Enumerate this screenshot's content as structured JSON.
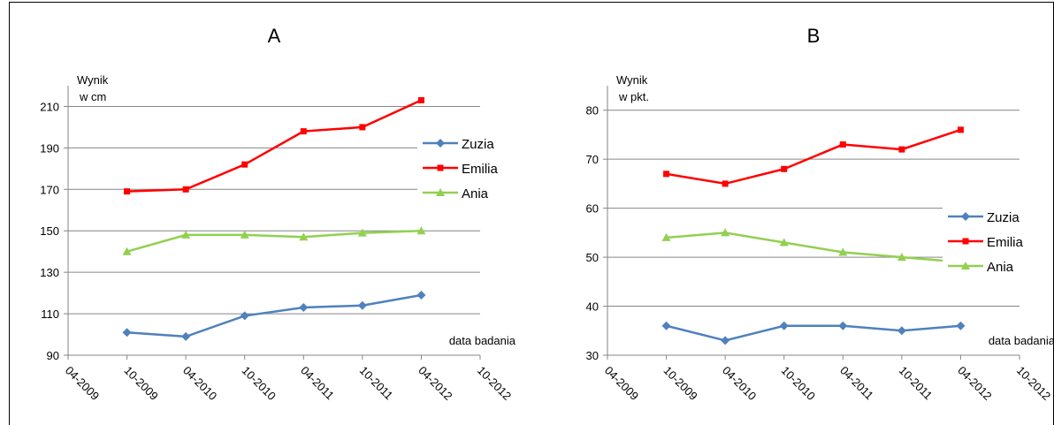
{
  "chart_data": [
    {
      "type": "line",
      "title": "A",
      "ylabel": [
        "Wynik",
        "w cm"
      ],
      "xlabel": "data badania",
      "categories": [
        "04-2009",
        "10-2009",
        "04-2010",
        "10-2010",
        "04-2011",
        "10-2011",
        "04-2012",
        "10-2012"
      ],
      "series": [
        {
          "name": "Zuzia",
          "color": "#4f81bd",
          "marker": "diamond",
          "values": [
            null,
            101,
            99,
            109,
            113,
            114,
            119,
            null
          ]
        },
        {
          "name": "Emilia",
          "color": "#ff0000",
          "marker": "square",
          "values": [
            null,
            169,
            170,
            182,
            198,
            200,
            213,
            null
          ]
        },
        {
          "name": "Ania",
          "color": "#92d050",
          "marker": "triangle",
          "values": [
            null,
            140,
            148,
            148,
            147,
            149,
            150,
            null
          ]
        }
      ],
      "ylim": [
        90,
        220
      ],
      "yticks": [
        90,
        110,
        130,
        150,
        170,
        190,
        210
      ],
      "grid": true,
      "legend": "right"
    },
    {
      "type": "line",
      "title": "B",
      "ylabel": [
        "Wynik",
        "w pkt."
      ],
      "xlabel": "data badania",
      "categories": [
        "04-2009",
        "10-2009",
        "04-2010",
        "10-2010",
        "04-2011",
        "10-2011",
        "04-2012",
        "10-2012"
      ],
      "series": [
        {
          "name": "Zuzia",
          "color": "#4f81bd",
          "marker": "diamond",
          "values": [
            null,
            36,
            33,
            36,
            36,
            35,
            36,
            null
          ]
        },
        {
          "name": "Emilia",
          "color": "#ff0000",
          "marker": "square",
          "values": [
            null,
            67,
            65,
            68,
            73,
            72,
            76,
            null
          ]
        },
        {
          "name": "Ania",
          "color": "#92d050",
          "marker": "triangle",
          "values": [
            null,
            54,
            55,
            53,
            51,
            50,
            49,
            null
          ]
        }
      ],
      "ylim": [
        30,
        85
      ],
      "yticks": [
        30,
        40,
        50,
        60,
        70,
        80
      ],
      "grid": true,
      "legend": "right"
    }
  ]
}
